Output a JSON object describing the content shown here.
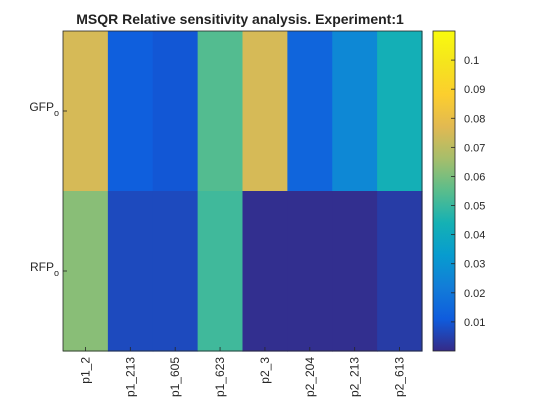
{
  "chart_data": {
    "type": "heatmap",
    "title": "MSQR Relative sensitivity analysis. Experiment:1",
    "x_categories": [
      "p1_2",
      "p1_213",
      "p1_605",
      "p1_623",
      "p2_3",
      "p2_204",
      "p2_213",
      "p2_613"
    ],
    "y_categories": [
      {
        "base": "GFP",
        "sub": "o"
      },
      {
        "base": "RFP",
        "sub": "o"
      }
    ],
    "values": [
      [
        0.075,
        0.012,
        0.01,
        0.054,
        0.075,
        0.014,
        0.026,
        0.043
      ],
      [
        0.062,
        0.007,
        0.007,
        0.051,
        0.001,
        0.001,
        0.001,
        0.004
      ]
    ],
    "colorbar": {
      "range": [
        0.0,
        0.11
      ],
      "ticks": [
        "0.01",
        "0.02",
        "0.03",
        "0.04",
        "0.05",
        "0.06",
        "0.07",
        "0.08",
        "0.09",
        "0.1"
      ],
      "colormap": "parula"
    }
  }
}
